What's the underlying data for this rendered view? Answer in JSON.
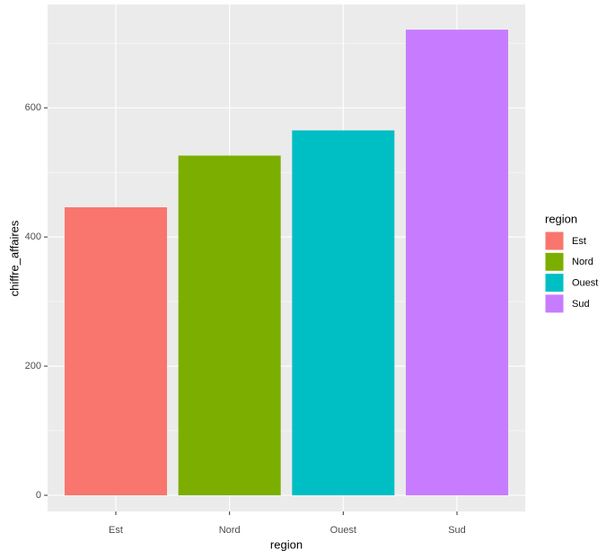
{
  "chart_data": {
    "type": "bar",
    "x_label": "region",
    "y_label": "chiffre_affaires",
    "legend_title": "region",
    "categories": [
      "Est",
      "Nord",
      "Ouest",
      "Sud"
    ],
    "values": [
      446,
      526,
      565,
      721
    ],
    "colors": [
      "#f8766d",
      "#7cae00",
      "#00bfc4",
      "#c77cff"
    ],
    "ylim": [
      -25,
      760
    ],
    "yticks": [
      0,
      200,
      400,
      600
    ],
    "yticks_minor": [
      100,
      300,
      500,
      700
    ],
    "grid": true,
    "legend": "right"
  }
}
